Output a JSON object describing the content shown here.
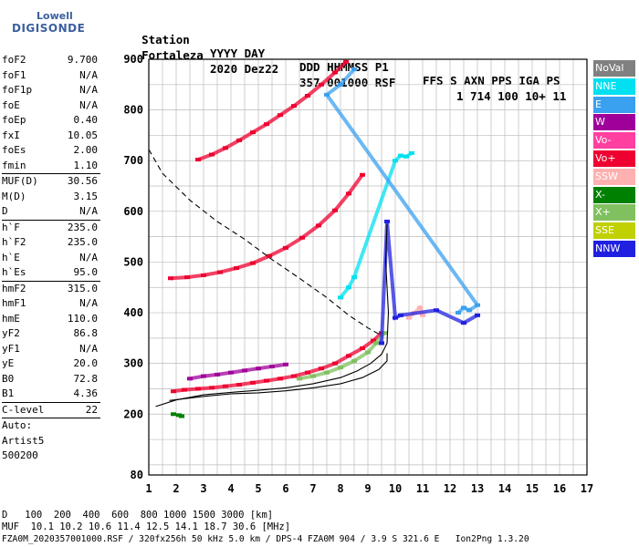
{
  "logo": {
    "line1": "Lowell",
    "line2": "DIGISONDE"
  },
  "header": {
    "row1": [
      "Station",
      "YYYY DAY",
      "DDD HHMMSS P1",
      "FFS S AXN PPS IGA PS"
    ],
    "row2": [
      "Fortaleza",
      "2020 Dez22",
      "357 001000 RSF",
      "1 714 100 10+ 11"
    ]
  },
  "params": {
    "group1": [
      [
        "foF2",
        "9.700"
      ],
      [
        "foF1",
        "N/A"
      ],
      [
        "foF1p",
        "N/A"
      ],
      [
        "foE",
        "N/A"
      ],
      [
        "foEp",
        "0.40"
      ],
      [
        "fxI",
        "10.05"
      ],
      [
        "foEs",
        "2.00"
      ],
      [
        "fmin",
        "1.10"
      ]
    ],
    "group2": [
      [
        "MUF(D)",
        "30.56"
      ],
      [
        "M(D)",
        "3.15"
      ],
      [
        "D",
        "N/A"
      ]
    ],
    "group3": [
      [
        "h`F",
        "235.0"
      ],
      [
        "h`F2",
        "235.0"
      ],
      [
        "h`E",
        "N/A"
      ],
      [
        "h`Es",
        "95.0"
      ]
    ],
    "group4": [
      [
        "hmF2",
        "315.0"
      ],
      [
        "hmF1",
        "N/A"
      ],
      [
        "hmE",
        "110.0"
      ],
      [
        "yF2",
        "86.8"
      ],
      [
        "yF1",
        "N/A"
      ],
      [
        "yE",
        "20.0"
      ],
      [
        "B0",
        "72.8"
      ],
      [
        "B1",
        "4.36"
      ]
    ],
    "group5": [
      [
        "C-level",
        "22"
      ]
    ],
    "auto": [
      "Auto:",
      "Artist5",
      "500200"
    ]
  },
  "legend": [
    {
      "label": "NoVal",
      "color": "#808080"
    },
    {
      "label": "NNE",
      "color": "#00e0f0"
    },
    {
      "label": "E",
      "color": "#3aa0f0"
    },
    {
      "label": "W",
      "color": "#a0009a"
    },
    {
      "label": "Vo-",
      "color": "#ff40a0"
    },
    {
      "label": "Vo+",
      "color": "#ee0030"
    },
    {
      "label": "SSW",
      "color": "#ffb0b0"
    },
    {
      "label": "X-",
      "color": "#008000"
    },
    {
      "label": "X+",
      "color": "#80c060"
    },
    {
      "label": "SSE",
      "color": "#c0d000"
    },
    {
      "label": "NNW",
      "color": "#2020e0"
    }
  ],
  "footer": {
    "d_row": "D   100  200  400  600  800 1000 1500 3000 [km]",
    "muf_row": "MUF  10.1 10.2 10.6 11.4 12.5 14.1 18.7 30.6 [MHz]",
    "info_row": "FZA0M_2020357001000.RSF / 320fx256h 50 kHz 5.0 km / DPS-4 FZA0M 904 / 3.9 S 321.6 E   Ion2Png 1.3.20"
  },
  "chart_data": {
    "type": "scatter",
    "title": "",
    "xlabel": "",
    "ylabel": "",
    "xlim": [
      1,
      17
    ],
    "ylim": [
      80,
      900
    ],
    "xticks": [
      1,
      2,
      3,
      4,
      5,
      6,
      7,
      8,
      9,
      10,
      11,
      12,
      13,
      14,
      15,
      16,
      17
    ],
    "yticks": [
      80,
      200,
      300,
      400,
      500,
      600,
      700,
      800,
      900
    ],
    "grid": true,
    "series": [
      {
        "name": "Vo+",
        "color": "#ee0030",
        "x": [
          1.9,
          2.3,
          2.8,
          3.3,
          3.8,
          4.3,
          4.8,
          5.3,
          5.8,
          6.3,
          6.8,
          7.3,
          7.8,
          8.3,
          8.8,
          9.2,
          9.5
        ],
        "y": [
          245,
          248,
          250,
          252,
          255,
          258,
          262,
          266,
          270,
          275,
          282,
          290,
          300,
          315,
          330,
          345,
          360
        ]
      },
      {
        "name": "X+",
        "color": "#80c060",
        "x": [
          6.5,
          7.0,
          7.5,
          8.0,
          8.5,
          9.0,
          9.3,
          9.6
        ],
        "y": [
          270,
          275,
          282,
          292,
          305,
          322,
          340,
          360
        ]
      },
      {
        "name": "W",
        "color": "#a0009a",
        "x": [
          2.5,
          3.0,
          3.5,
          4.0,
          4.5,
          5.0,
          5.5,
          6.0
        ],
        "y": [
          270,
          275,
          278,
          282,
          286,
          290,
          294,
          298
        ]
      },
      {
        "name": "Vo+",
        "color": "#ee0030",
        "x": [
          1.8,
          2.4,
          3.0,
          3.6,
          4.2,
          4.8,
          5.4,
          6.0,
          6.6,
          7.2,
          7.8,
          8.3,
          8.8
        ],
        "y": [
          468,
          470,
          474,
          480,
          488,
          498,
          512,
          528,
          548,
          572,
          602,
          635,
          672
        ]
      },
      {
        "name": "Vo+",
        "color": "#ee0030",
        "x": [
          2.8,
          3.3,
          3.8,
          4.3,
          4.8,
          5.3,
          5.8,
          6.3,
          6.8,
          7.3,
          7.8,
          8.2
        ],
        "y": [
          702,
          712,
          725,
          740,
          756,
          772,
          790,
          808,
          828,
          850,
          874,
          895
        ]
      },
      {
        "name": "NNE",
        "color": "#00e0f0",
        "x": [
          8.0,
          8.3,
          8.5,
          10.0,
          10.2,
          10.4,
          10.6
        ],
        "y": [
          430,
          450,
          470,
          700,
          710,
          708,
          715
        ]
      },
      {
        "name": "E",
        "color": "#3aa0f0",
        "x": [
          12.3,
          12.5,
          12.7,
          13.0,
          7.5,
          8.0,
          8.5
        ],
        "y": [
          400,
          410,
          405,
          415,
          830,
          850,
          880
        ]
      },
      {
        "name": "SSW",
        "color": "#ffb0b0",
        "x": [
          10.5,
          10.7,
          10.9,
          11.0
        ],
        "y": [
          390,
          400,
          410,
          395
        ]
      },
      {
        "name": "X-",
        "color": "#008000",
        "x": [
          1.9,
          2.1,
          2.2
        ],
        "y": [
          200,
          198,
          196
        ]
      },
      {
        "name": "NNW",
        "color": "#2020e0",
        "x": [
          9.5,
          9.7,
          10.0,
          10.2,
          11.5,
          12.5,
          13.0
        ],
        "y": [
          340,
          580,
          390,
          395,
          405,
          380,
          395
        ]
      }
    ],
    "lines": [
      {
        "style": "solid",
        "x": [
          1.25,
          2,
          3,
          4,
          5,
          6,
          7,
          8,
          8.6,
          9.1,
          9.5,
          9.7,
          9.75,
          9.65,
          9.7
        ],
        "y": [
          215,
          228,
          238,
          243,
          247,
          252,
          260,
          272,
          285,
          300,
          318,
          340,
          400,
          500,
          575
        ]
      },
      {
        "style": "solid",
        "x": [
          1.75,
          3,
          4,
          5,
          6,
          7,
          8,
          8.8,
          9.4,
          9.7,
          9.7
        ],
        "y": [
          227,
          235,
          240,
          242,
          246,
          252,
          260,
          272,
          288,
          305,
          320
        ]
      },
      {
        "style": "dashed",
        "x": [
          1.0,
          1.5,
          2.5,
          3.5,
          4.5,
          5.5,
          6.5,
          7.5,
          8.3,
          9.0,
          9.5
        ],
        "y": [
          722,
          675,
          622,
          580,
          545,
          505,
          468,
          430,
          395,
          370,
          355
        ]
      }
    ]
  }
}
